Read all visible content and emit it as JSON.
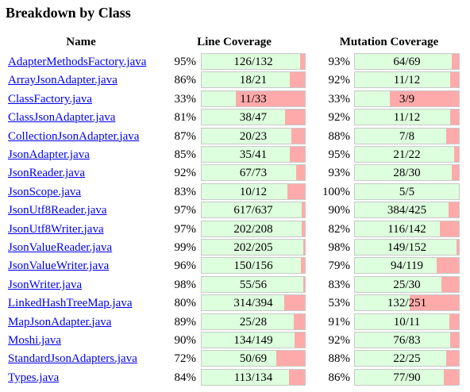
{
  "title": "Breakdown by Class",
  "headers": {
    "name": "Name",
    "line": "Line Coverage",
    "mutation": "Mutation Coverage"
  },
  "colors": {
    "covered": "#ddffdd",
    "uncovered": "#ffaaaa",
    "link": "#0000ee"
  },
  "rows": [
    {
      "name": "AdapterMethodsFactory.java",
      "line_pct": "95%",
      "line_label": "126/132",
      "line_cov": 126,
      "line_tot": 132,
      "mut_pct": "93%",
      "mut_label": "64/69",
      "mut_cov": 64,
      "mut_tot": 69
    },
    {
      "name": "ArrayJsonAdapter.java",
      "line_pct": "86%",
      "line_label": "18/21",
      "line_cov": 18,
      "line_tot": 21,
      "mut_pct": "92%",
      "mut_label": "11/12",
      "mut_cov": 11,
      "mut_tot": 12
    },
    {
      "name": "ClassFactory.java",
      "line_pct": "33%",
      "line_label": "11/33",
      "line_cov": 11,
      "line_tot": 33,
      "mut_pct": "33%",
      "mut_label": "3/9",
      "mut_cov": 3,
      "mut_tot": 9
    },
    {
      "name": "ClassJsonAdapter.java",
      "line_pct": "81%",
      "line_label": "38/47",
      "line_cov": 38,
      "line_tot": 47,
      "mut_pct": "92%",
      "mut_label": "11/12",
      "mut_cov": 11,
      "mut_tot": 12
    },
    {
      "name": "CollectionJsonAdapter.java",
      "line_pct": "87%",
      "line_label": "20/23",
      "line_cov": 20,
      "line_tot": 23,
      "mut_pct": "88%",
      "mut_label": "7/8",
      "mut_cov": 7,
      "mut_tot": 8
    },
    {
      "name": "JsonAdapter.java",
      "line_pct": "85%",
      "line_label": "35/41",
      "line_cov": 35,
      "line_tot": 41,
      "mut_pct": "95%",
      "mut_label": "21/22",
      "mut_cov": 21,
      "mut_tot": 22
    },
    {
      "name": "JsonReader.java",
      "line_pct": "92%",
      "line_label": "67/73",
      "line_cov": 67,
      "line_tot": 73,
      "mut_pct": "93%",
      "mut_label": "28/30",
      "mut_cov": 28,
      "mut_tot": 30
    },
    {
      "name": "JsonScope.java",
      "line_pct": "83%",
      "line_label": "10/12",
      "line_cov": 10,
      "line_tot": 12,
      "mut_pct": "100%",
      "mut_label": "5/5",
      "mut_cov": 5,
      "mut_tot": 5
    },
    {
      "name": "JsonUtf8Reader.java",
      "line_pct": "97%",
      "line_label": "617/637",
      "line_cov": 617,
      "line_tot": 637,
      "mut_pct": "90%",
      "mut_label": "384/425",
      "mut_cov": 384,
      "mut_tot": 425
    },
    {
      "name": "JsonUtf8Writer.java",
      "line_pct": "97%",
      "line_label": "202/208",
      "line_cov": 202,
      "line_tot": 208,
      "mut_pct": "82%",
      "mut_label": "116/142",
      "mut_cov": 116,
      "mut_tot": 142
    },
    {
      "name": "JsonValueReader.java",
      "line_pct": "99%",
      "line_label": "202/205",
      "line_cov": 202,
      "line_tot": 205,
      "mut_pct": "98%",
      "mut_label": "149/152",
      "mut_cov": 149,
      "mut_tot": 152
    },
    {
      "name": "JsonValueWriter.java",
      "line_pct": "96%",
      "line_label": "150/156",
      "line_cov": 150,
      "line_tot": 156,
      "mut_pct": "79%",
      "mut_label": "94/119",
      "mut_cov": 94,
      "mut_tot": 119
    },
    {
      "name": "JsonWriter.java",
      "line_pct": "98%",
      "line_label": "55/56",
      "line_cov": 55,
      "line_tot": 56,
      "mut_pct": "83%",
      "mut_label": "25/30",
      "mut_cov": 25,
      "mut_tot": 30
    },
    {
      "name": "LinkedHashTreeMap.java",
      "line_pct": "80%",
      "line_label": "314/394",
      "line_cov": 314,
      "line_tot": 394,
      "mut_pct": "53%",
      "mut_label": "132/251",
      "mut_cov": 132,
      "mut_tot": 251
    },
    {
      "name": "MapJsonAdapter.java",
      "line_pct": "89%",
      "line_label": "25/28",
      "line_cov": 25,
      "line_tot": 28,
      "mut_pct": "91%",
      "mut_label": "10/11",
      "mut_cov": 10,
      "mut_tot": 11
    },
    {
      "name": "Moshi.java",
      "line_pct": "90%",
      "line_label": "134/149",
      "line_cov": 134,
      "line_tot": 149,
      "mut_pct": "92%",
      "mut_label": "76/83",
      "mut_cov": 76,
      "mut_tot": 83
    },
    {
      "name": "StandardJsonAdapters.java",
      "line_pct": "72%",
      "line_label": "50/69",
      "line_cov": 50,
      "line_tot": 69,
      "mut_pct": "88%",
      "mut_label": "22/25",
      "mut_cov": 22,
      "mut_tot": 25
    },
    {
      "name": "Types.java",
      "line_pct": "84%",
      "line_label": "113/134",
      "line_cov": 113,
      "line_tot": 134,
      "mut_pct": "86%",
      "mut_label": "77/90",
      "mut_cov": 77,
      "mut_tot": 90
    }
  ]
}
